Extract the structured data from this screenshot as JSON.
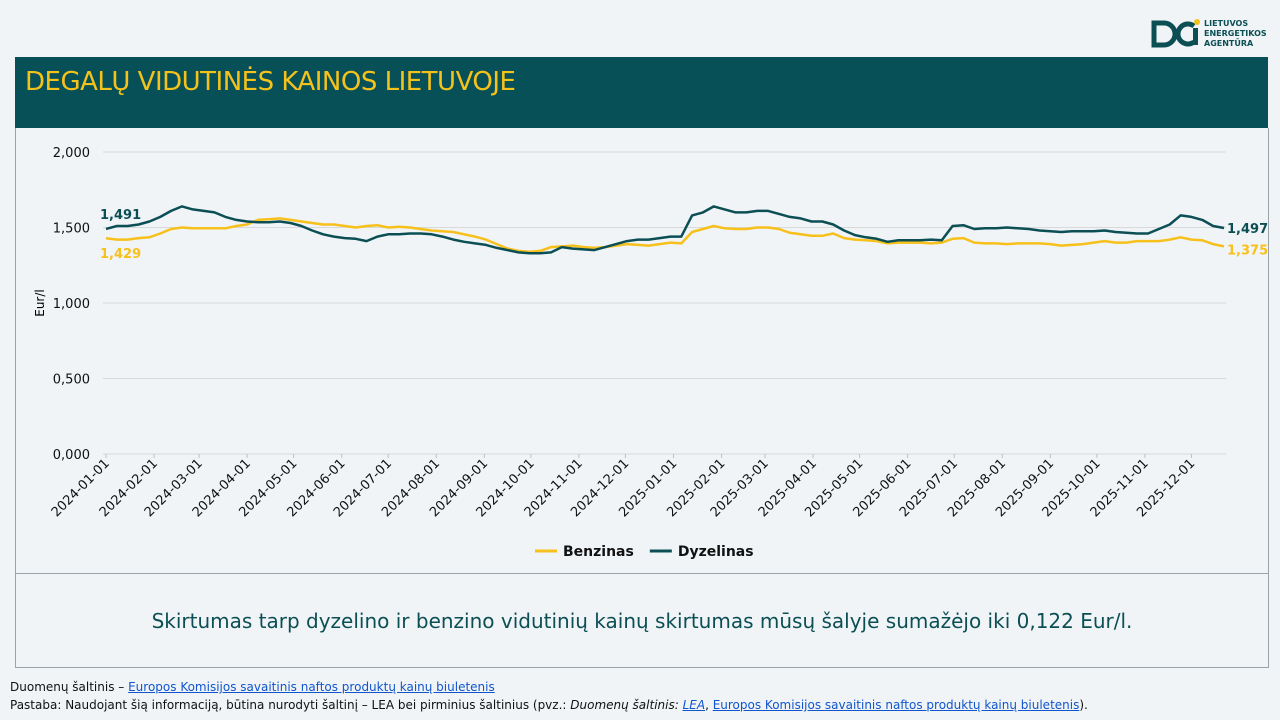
{
  "header": {
    "logo": [
      "LIETUVOS",
      "ENERGETIKOS",
      "AGENTŪRA"
    ],
    "title": "DEGALŲ VIDUTINĖS KAINOS LIETUVOJE"
  },
  "chart_data": {
    "type": "line",
    "y_label": "Eur/l",
    "x": [
      "2024-01-01",
      "2024-01-08",
      "2024-01-15",
      "2024-01-22",
      "2024-01-29",
      "2024-02-05",
      "2024-02-12",
      "2024-02-19",
      "2024-02-26",
      "2024-03-04",
      "2024-03-11",
      "2024-03-18",
      "2024-03-25",
      "2024-04-01",
      "2024-04-08",
      "2024-04-15",
      "2024-04-22",
      "2024-04-29",
      "2024-05-06",
      "2024-05-13",
      "2024-05-20",
      "2024-05-27",
      "2024-06-03",
      "2024-06-10",
      "2024-06-17",
      "2024-06-24",
      "2024-07-01",
      "2024-07-08",
      "2024-07-15",
      "2024-07-22",
      "2024-07-29",
      "2024-08-05",
      "2024-08-12",
      "2024-08-19",
      "2024-08-26",
      "2024-09-02",
      "2024-09-09",
      "2024-09-16",
      "2024-09-23",
      "2024-09-30",
      "2024-10-07",
      "2024-10-14",
      "2024-10-21",
      "2024-10-28",
      "2024-11-04",
      "2024-11-11",
      "2024-11-18",
      "2024-11-25",
      "2024-12-02",
      "2024-12-09",
      "2024-12-16",
      "2024-12-23",
      "2024-12-30",
      "2025-01-06",
      "2025-01-13",
      "2025-01-20",
      "2025-01-27",
      "2025-02-03",
      "2025-02-10",
      "2025-02-17",
      "2025-02-24",
      "2025-03-03",
      "2025-03-10",
      "2025-03-17",
      "2025-03-24",
      "2025-03-31",
      "2025-04-07",
      "2025-04-14",
      "2025-04-21",
      "2025-04-28",
      "2025-05-05",
      "2025-05-12",
      "2025-05-19",
      "2025-05-26",
      "2025-06-02",
      "2025-06-09",
      "2025-06-16",
      "2025-06-23",
      "2025-06-30",
      "2025-07-07",
      "2025-07-14",
      "2025-07-21",
      "2025-07-28",
      "2025-08-04",
      "2025-08-11",
      "2025-08-18",
      "2025-08-25",
      "2025-09-01",
      "2025-09-08",
      "2025-09-15",
      "2025-09-22",
      "2025-09-29",
      "2025-10-06",
      "2025-10-13",
      "2025-10-20",
      "2025-10-27",
      "2025-11-03",
      "2025-11-10",
      "2025-11-17",
      "2025-11-24",
      "2025-12-01",
      "2025-12-08",
      "2025-12-15",
      "2025-12-22"
    ],
    "xlim": [
      "2024-01-01",
      "2025-12-22"
    ],
    "xticks": [
      "2024-01-01",
      "2024-02-01",
      "2024-03-01",
      "2024-04-01",
      "2024-05-01",
      "2024-06-01",
      "2024-07-01",
      "2024-08-01",
      "2024-09-01",
      "2024-10-01",
      "2024-11-01",
      "2024-12-01",
      "2025-01-01",
      "2025-02-01",
      "2025-03-01",
      "2025-04-01",
      "2025-05-01",
      "2025-06-01",
      "2025-07-01",
      "2025-08-01",
      "2025-09-01",
      "2025-10-01",
      "2025-11-01",
      "2025-12-01"
    ],
    "ylim": [
      0,
      2
    ],
    "yticks": [
      {
        "value": 0,
        "label": "0,000"
      },
      {
        "value": 0.5,
        "label": "0,500"
      },
      {
        "value": 1,
        "label": "1,000"
      },
      {
        "value": 1.5,
        "label": "1,500"
      },
      {
        "value": 2,
        "label": "2,000"
      }
    ],
    "grid": true,
    "legend": "bottom",
    "series": [
      {
        "name": "Benzinas",
        "color": "#f7c01b",
        "values": [
          1.429,
          1.42,
          1.42,
          1.43,
          1.435,
          1.46,
          1.49,
          1.5,
          1.495,
          1.495,
          1.495,
          1.495,
          1.51,
          1.52,
          1.55,
          1.555,
          1.56,
          1.55,
          1.54,
          1.53,
          1.52,
          1.52,
          1.51,
          1.5,
          1.51,
          1.515,
          1.5,
          1.505,
          1.5,
          1.49,
          1.48,
          1.475,
          1.47,
          1.455,
          1.44,
          1.42,
          1.39,
          1.36,
          1.345,
          1.34,
          1.345,
          1.37,
          1.375,
          1.38,
          1.37,
          1.365,
          1.37,
          1.38,
          1.39,
          1.385,
          1.38,
          1.39,
          1.4,
          1.395,
          1.47,
          1.49,
          1.51,
          1.495,
          1.49,
          1.49,
          1.5,
          1.5,
          1.49,
          1.465,
          1.455,
          1.445,
          1.445,
          1.46,
          1.43,
          1.42,
          1.415,
          1.41,
          1.395,
          1.4,
          1.4,
          1.4,
          1.395,
          1.4,
          1.425,
          1.43,
          1.4,
          1.395,
          1.395,
          1.39,
          1.395,
          1.395,
          1.395,
          1.39,
          1.38,
          1.385,
          1.39,
          1.4,
          1.41,
          1.4,
          1.4,
          1.41,
          1.41,
          1.41,
          1.42,
          1.435,
          1.42,
          1.415,
          1.39,
          1.375
        ],
        "value_labels": [
          "1,429",
          null,
          null,
          null,
          null,
          null,
          null,
          null,
          null,
          null,
          null,
          null,
          null,
          null,
          null,
          null,
          null,
          null,
          null,
          null,
          null,
          null,
          null,
          null,
          null,
          null,
          null,
          null,
          null,
          null,
          null,
          null,
          null,
          null,
          null,
          null,
          null,
          null,
          null,
          null,
          null,
          null,
          null,
          null,
          null,
          null,
          null,
          null,
          null,
          null,
          null,
          null,
          null,
          null,
          null,
          null,
          null,
          null,
          null,
          null,
          null,
          null,
          null,
          null,
          null,
          null,
          null,
          null,
          null,
          null,
          null,
          null,
          null,
          null,
          null,
          null,
          null,
          null,
          null,
          null,
          null,
          null,
          null,
          null,
          null,
          null,
          null,
          null,
          null,
          null,
          null,
          null,
          null,
          null,
          null,
          null,
          null,
          null,
          null,
          null,
          null,
          null,
          null,
          "1,375"
        ]
      },
      {
        "name": "Dyzelinas",
        "color": "#0b4f55",
        "values": [
          1.491,
          1.51,
          1.51,
          1.52,
          1.54,
          1.57,
          1.61,
          1.64,
          1.62,
          1.61,
          1.6,
          1.57,
          1.55,
          1.54,
          1.535,
          1.535,
          1.54,
          1.53,
          1.51,
          1.48,
          1.455,
          1.44,
          1.43,
          1.425,
          1.41,
          1.44,
          1.455,
          1.455,
          1.46,
          1.46,
          1.455,
          1.44,
          1.42,
          1.405,
          1.395,
          1.385,
          1.365,
          1.35,
          1.335,
          1.33,
          1.33,
          1.335,
          1.37,
          1.36,
          1.355,
          1.35,
          1.37,
          1.39,
          1.41,
          1.42,
          1.42,
          1.43,
          1.44,
          1.44,
          1.58,
          1.6,
          1.64,
          1.62,
          1.6,
          1.6,
          1.61,
          1.61,
          1.59,
          1.57,
          1.56,
          1.54,
          1.54,
          1.52,
          1.48,
          1.45,
          1.435,
          1.425,
          1.405,
          1.415,
          1.415,
          1.415,
          1.42,
          1.415,
          1.51,
          1.515,
          1.49,
          1.495,
          1.495,
          1.5,
          1.495,
          1.49,
          1.48,
          1.475,
          1.47,
          1.475,
          1.475,
          1.475,
          1.48,
          1.47,
          1.465,
          1.46,
          1.46,
          1.49,
          1.52,
          1.58,
          1.57,
          1.55,
          1.51,
          1.497
        ],
        "value_labels": [
          "1,491",
          null,
          null,
          null,
          null,
          null,
          null,
          null,
          null,
          null,
          null,
          null,
          null,
          null,
          null,
          null,
          null,
          null,
          null,
          null,
          null,
          null,
          null,
          null,
          null,
          null,
          null,
          null,
          null,
          null,
          null,
          null,
          null,
          null,
          null,
          null,
          null,
          null,
          null,
          null,
          null,
          null,
          null,
          null,
          null,
          null,
          null,
          null,
          null,
          null,
          null,
          null,
          null,
          null,
          null,
          null,
          null,
          null,
          null,
          null,
          null,
          null,
          null,
          null,
          null,
          null,
          null,
          null,
          null,
          null,
          null,
          null,
          null,
          null,
          null,
          null,
          null,
          null,
          null,
          null,
          null,
          null,
          null,
          null,
          null,
          null,
          null,
          null,
          null,
          null,
          null,
          null,
          null,
          null,
          null,
          null,
          null,
          null,
          null,
          null,
          null,
          null,
          null,
          "1,497"
        ]
      }
    ]
  },
  "summary": "Skirtumas tarp dyzelino ir benzino vidutinių kainų skirtumas mūsų šalyje sumažėjo iki 0,122 Eur/l.",
  "footer": {
    "source_prefix": "Duomenų šaltinis – ",
    "source_link": "Europos Komisijos savaitinis naftos produktų kainų biuletenis",
    "note_prefix": "Pastaba: Naudojant šią informaciją, būtina nurodyti šaltinį – LEA bei pirminius šaltinius (pvz.: ",
    "note_italic": "Duomenų šaltinis: ",
    "note_link1": "LEA",
    "note_sep": ", ",
    "note_link2": "Europos Komisijos savaitinis naftos produktų kainų biuletenis",
    "note_end": ")."
  }
}
